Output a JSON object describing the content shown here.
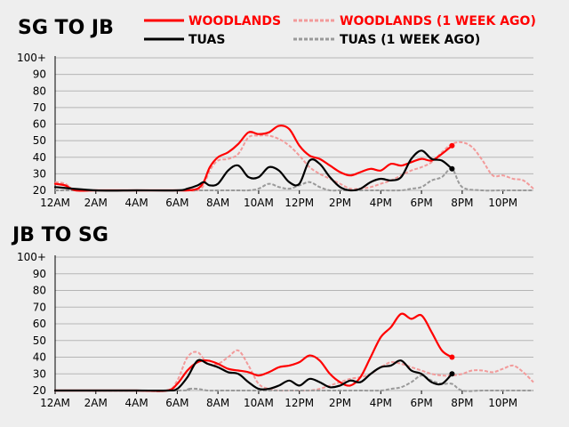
{
  "colors": {
    "woodlands": "#ff0000",
    "woodlands_week_ago": "#f29a9a",
    "tuas": "#000000",
    "tuas_week_ago": "#9a9a9a",
    "background": "#eeeeee",
    "grid": "#b5b5b5"
  },
  "legend": {
    "woodlands": "WOODLANDS",
    "woodlands_week_ago": "WOODLANDS (1 WEEK AGO)",
    "tuas": "TUAS",
    "tuas_week_ago": "TUAS (1 WEEK AGO)"
  },
  "chart_data": [
    {
      "type": "line",
      "title": "SG TO JB",
      "x_unit": "hour of day",
      "xlim": [
        0,
        23.5
      ],
      "ylim": [
        20,
        100
      ],
      "y_ticks": [
        "100+",
        "90",
        "80",
        "70",
        "60",
        "50",
        "40",
        "30",
        "20"
      ],
      "x_ticks": [
        "12AM",
        "2AM",
        "4AM",
        "6AM",
        "8AM",
        "10AM",
        "12PM",
        "2PM",
        "4PM",
        "6PM",
        "8PM",
        "10PM"
      ],
      "grid": true,
      "series": [
        {
          "name": "WOODLANDS (1 WEEK AGO)",
          "style": "dashed",
          "color": "#f29a9a",
          "x": [
            0,
            0.5,
            1,
            2,
            4,
            6,
            6.5,
            7,
            7.3,
            7.6,
            8,
            8.5,
            9,
            9.5,
            10,
            10.5,
            11,
            11.5,
            12,
            12.5,
            13,
            13.5,
            14,
            14.5,
            15,
            15.5,
            16,
            16.5,
            17,
            17.5,
            18,
            18.5,
            19,
            19.5,
            20,
            20.5,
            21,
            21.5,
            22,
            22.5,
            23,
            23.5
          ],
          "y": [
            25,
            24,
            20,
            20,
            20,
            20,
            20,
            20,
            23,
            32,
            38,
            39,
            42,
            52,
            53,
            53,
            51,
            47,
            41,
            34,
            30,
            27,
            24,
            21,
            21,
            22,
            24,
            26,
            29,
            32,
            34,
            37,
            43,
            48,
            49,
            46,
            38,
            29,
            29,
            27,
            26,
            21
          ]
        },
        {
          "name": "TUAS (1 WEEK AGO)",
          "style": "dashed",
          "color": "#9a9a9a",
          "x": [
            0,
            6,
            7,
            7.5,
            8,
            9,
            9.5,
            10,
            10.5,
            11,
            11.5,
            12,
            12.5,
            13,
            13.5,
            14,
            15,
            16,
            17,
            17.5,
            18,
            18.5,
            19,
            19.5,
            20,
            21,
            22,
            23,
            23.5
          ],
          "y": [
            20,
            20,
            20,
            20,
            20,
            20,
            20,
            21,
            24,
            22,
            21,
            23,
            25,
            22,
            20,
            20,
            20,
            20,
            20,
            21,
            22,
            26,
            28,
            33,
            22,
            20,
            20,
            20,
            20
          ]
        },
        {
          "name": "WOODLANDS",
          "style": "solid",
          "color": "#ff0000",
          "end_marker": true,
          "x": [
            0,
            0.5,
            1,
            2,
            4,
            6,
            6.5,
            7,
            7.3,
            7.6,
            8,
            8.5,
            9,
            9.5,
            10,
            10.5,
            11,
            11.5,
            12,
            12.5,
            13,
            13.5,
            14,
            14.5,
            15,
            15.5,
            16,
            16.5,
            17,
            17.5,
            18,
            18.5,
            19,
            19.5
          ],
          "y": [
            24,
            23,
            20,
            20,
            20,
            20,
            20,
            21,
            25,
            34,
            40,
            43,
            48,
            55,
            54,
            55,
            59,
            57,
            47,
            41,
            39,
            35,
            31,
            29,
            31,
            33,
            32,
            36,
            35,
            37,
            39,
            38,
            42,
            47
          ]
        },
        {
          "name": "TUAS",
          "style": "solid",
          "color": "#000000",
          "end_marker": true,
          "x": [
            0,
            2,
            4,
            6,
            6.5,
            7,
            7.3,
            7.6,
            8,
            8.5,
            9,
            9.5,
            10,
            10.5,
            11,
            11.5,
            12,
            12.5,
            13,
            13.5,
            14,
            14.5,
            15,
            15.5,
            16,
            16.5,
            17,
            17.5,
            18,
            18.5,
            19,
            19.5
          ],
          "y": [
            22,
            20,
            20,
            20,
            21,
            23,
            25,
            23,
            24,
            32,
            35,
            28,
            28,
            34,
            32,
            25,
            24,
            38,
            36,
            28,
            22,
            20,
            21,
            25,
            27,
            26,
            28,
            39,
            44,
            39,
            38,
            33
          ]
        }
      ]
    },
    {
      "type": "line",
      "title": "JB TO SG",
      "x_unit": "hour of day",
      "xlim": [
        0,
        23.5
      ],
      "ylim": [
        20,
        100
      ],
      "y_ticks": [
        "100+",
        "90",
        "80",
        "70",
        "60",
        "50",
        "40",
        "30",
        "20"
      ],
      "x_ticks": [
        "12AM",
        "2AM",
        "4AM",
        "6AM",
        "8AM",
        "10AM",
        "12PM",
        "2PM",
        "4PM",
        "6PM",
        "8PM",
        "10PM"
      ],
      "grid": true,
      "series": [
        {
          "name": "WOODLANDS (1 WEEK AGO)",
          "style": "dashed",
          "color": "#f29a9a",
          "x": [
            0,
            2,
            4,
            5.5,
            6,
            6.5,
            7,
            7.5,
            8,
            8.5,
            9,
            9.5,
            10,
            10.5,
            11,
            11.5,
            12,
            12.5,
            13,
            13.5,
            14,
            14.5,
            15,
            15.5,
            16,
            16.5,
            17,
            17.5,
            18,
            18.5,
            19,
            19.5,
            20,
            20.5,
            21,
            21.5,
            22,
            22.5,
            23,
            23.5
          ],
          "y": [
            20,
            20,
            20,
            20,
            26,
            40,
            43,
            36,
            36,
            40,
            44,
            35,
            24,
            21,
            20,
            20,
            20,
            20,
            21,
            23,
            25,
            27,
            28,
            30,
            34,
            37,
            36,
            34,
            32,
            30,
            29,
            29,
            30,
            32,
            32,
            31,
            33,
            35,
            31,
            25
          ]
        },
        {
          "name": "TUAS (1 WEEK AGO)",
          "style": "dashed",
          "color": "#9a9a9a",
          "x": [
            0,
            6,
            6.5,
            7,
            7.5,
            8,
            9,
            10,
            12,
            14,
            15,
            16,
            16.5,
            17,
            17.5,
            18,
            18.5,
            19,
            19.5,
            20,
            21,
            22,
            23,
            23.5
          ],
          "y": [
            20,
            20,
            21,
            21,
            20,
            20,
            20,
            20,
            20,
            20,
            20,
            20,
            21,
            22,
            25,
            29,
            26,
            24,
            24,
            20,
            20,
            20,
            20,
            20
          ]
        },
        {
          "name": "WOODLANDS",
          "style": "solid",
          "color": "#ff0000",
          "end_marker": true,
          "x": [
            0,
            2,
            4,
            5.5,
            6,
            6.5,
            7,
            7.5,
            8,
            8.5,
            9,
            9.5,
            10,
            10.5,
            11,
            11.5,
            12,
            12.5,
            13,
            13.5,
            14,
            14.5,
            15,
            15.5,
            16,
            16.5,
            17,
            17.5,
            18,
            18.5,
            19,
            19.5
          ],
          "y": [
            20,
            20,
            20,
            20,
            24,
            32,
            37,
            38,
            36,
            33,
            32,
            31,
            29,
            31,
            34,
            35,
            37,
            41,
            38,
            30,
            25,
            23,
            28,
            40,
            52,
            58,
            66,
            63,
            65,
            55,
            44,
            40
          ]
        },
        {
          "name": "TUAS",
          "style": "solid",
          "color": "#000000",
          "end_marker": true,
          "x": [
            0,
            2,
            4,
            5.5,
            6,
            6.5,
            7,
            7.5,
            8,
            8.5,
            9,
            9.5,
            10,
            10.5,
            11,
            11.5,
            12,
            12.5,
            13,
            13.5,
            14,
            14.5,
            15,
            15.5,
            16,
            16.5,
            17,
            17.5,
            18,
            18.5,
            19,
            19.5
          ],
          "y": [
            20,
            20,
            20,
            20,
            21,
            28,
            38,
            36,
            34,
            31,
            30,
            25,
            21,
            21,
            23,
            26,
            23,
            27,
            25,
            22,
            23,
            26,
            25,
            30,
            34,
            35,
            38,
            32,
            30,
            25,
            24,
            30
          ]
        }
      ]
    }
  ]
}
